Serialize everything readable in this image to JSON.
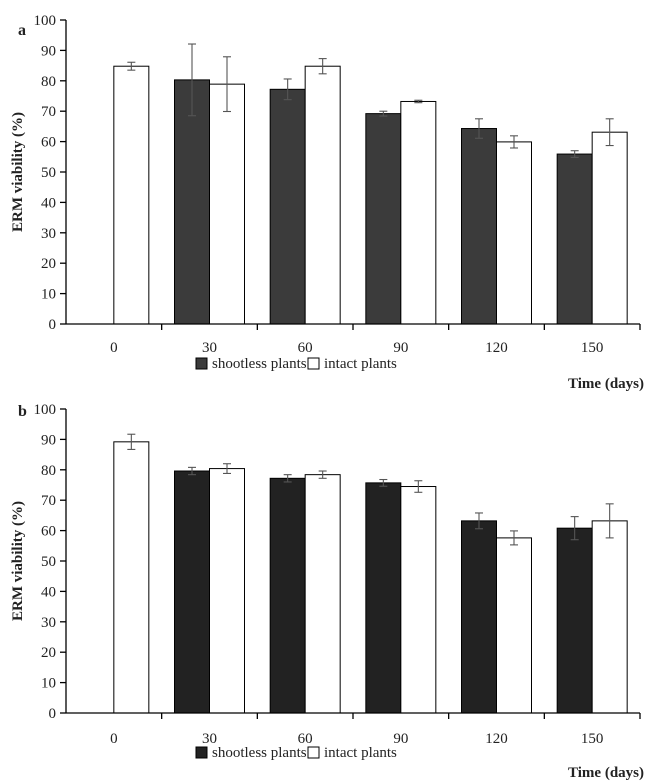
{
  "chart_data": [
    {
      "type": "bar",
      "panel_label": "a",
      "categories": [
        "0",
        "30",
        "60",
        "90",
        "120",
        "150"
      ],
      "series": [
        {
          "name": "shootless plants",
          "color": "#3b3b3b",
          "values": [
            null,
            80.3,
            77.2,
            69.2,
            64.3,
            55.9
          ],
          "errors": [
            null,
            11.8,
            3.4,
            0.8,
            3.2,
            1.1
          ]
        },
        {
          "name": "intact plants",
          "color": "#ffffff",
          "values": [
            84.8,
            78.9,
            84.8,
            73.2,
            59.9,
            63.1
          ],
          "errors": [
            1.3,
            9.0,
            2.5,
            0.4,
            2.0,
            4.4
          ]
        }
      ],
      "xlabel": "Time (days)",
      "ylabel": "ERM viability  (%)",
      "ylim": [
        0,
        100
      ],
      "yticks": [
        0,
        10,
        20,
        30,
        40,
        50,
        60,
        70,
        80,
        90,
        100
      ],
      "grid": false,
      "legend_position": "bottom"
    },
    {
      "type": "bar",
      "panel_label": "b",
      "categories": [
        "0",
        "30",
        "60",
        "90",
        "120",
        "150"
      ],
      "series": [
        {
          "name": "shootless plants",
          "color": "#222222",
          "values": [
            null,
            79.6,
            77.2,
            75.7,
            63.2,
            60.8
          ],
          "errors": [
            null,
            1.2,
            1.2,
            1.1,
            2.6,
            3.8
          ]
        },
        {
          "name": "intact plants",
          "color": "#ffffff",
          "values": [
            89.2,
            80.4,
            78.4,
            74.5,
            57.6,
            63.2
          ],
          "errors": [
            2.5,
            1.6,
            1.2,
            1.9,
            2.3,
            5.6
          ]
        }
      ],
      "xlabel": "Time (days)",
      "ylabel": "ERM viability  (%)",
      "ylim": [
        0,
        100
      ],
      "yticks": [
        0,
        10,
        20,
        30,
        40,
        50,
        60,
        70,
        80,
        90,
        100
      ],
      "grid": false,
      "legend_position": "bottom"
    }
  ]
}
